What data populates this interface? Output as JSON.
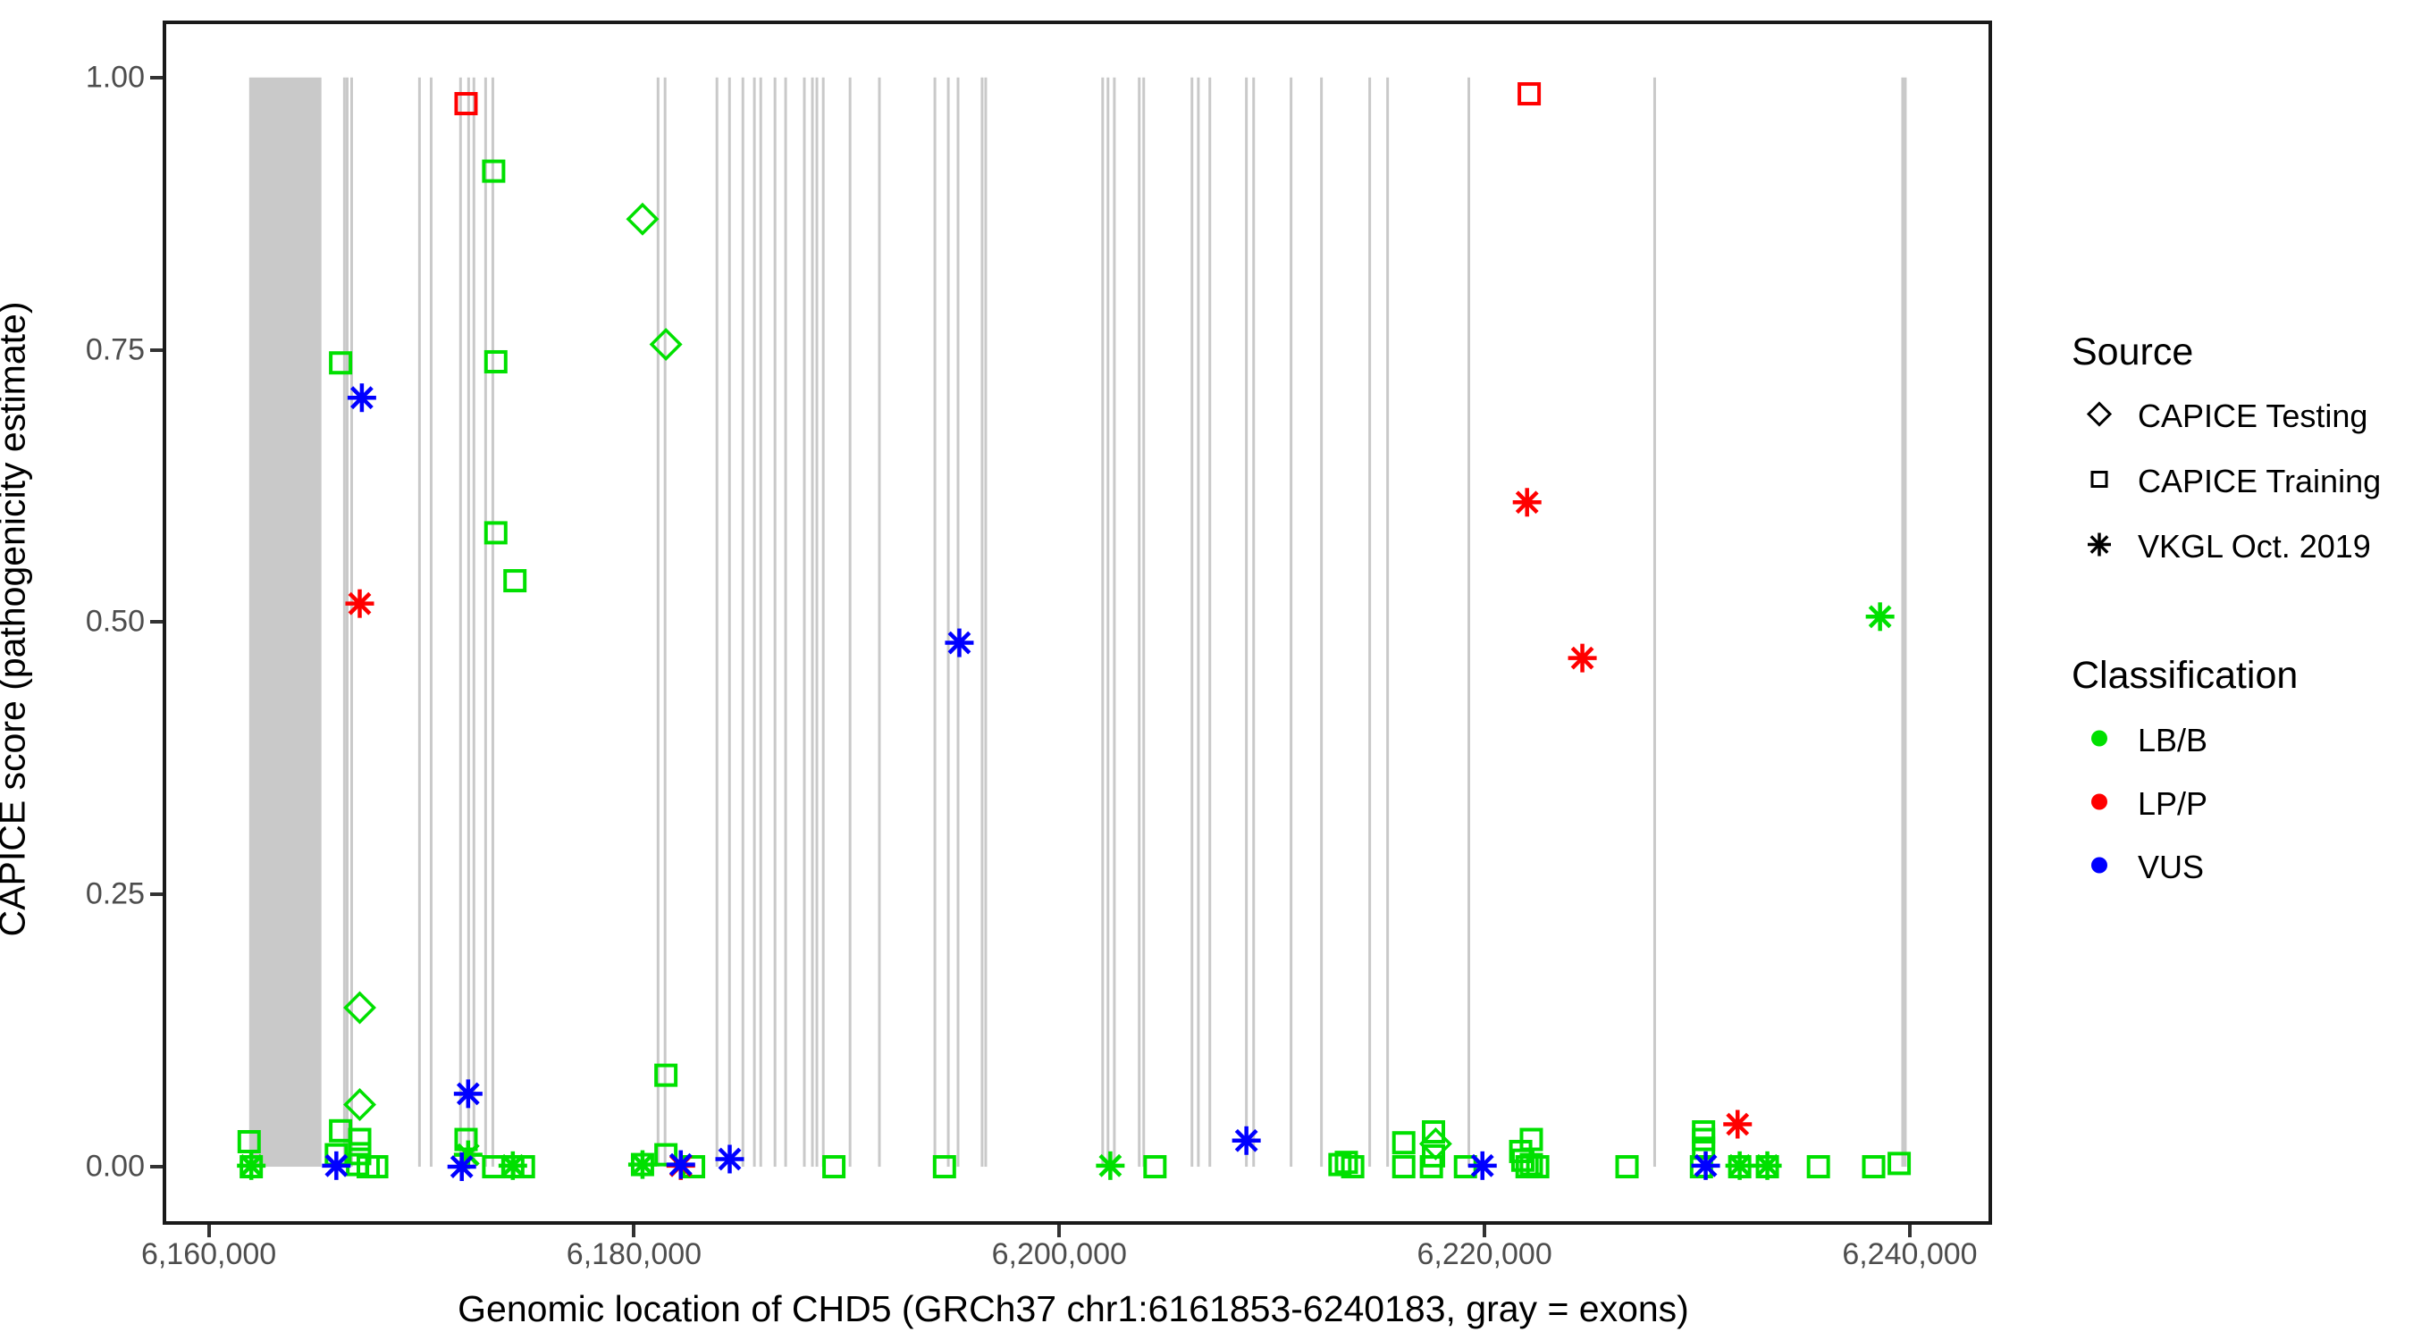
{
  "chart_data": {
    "type": "scatter",
    "title": "",
    "xlabel": "Genomic location of CHD5 (GRCh37 chr1:6161853-6240183, gray = exons)",
    "ylabel": "CAPICE score (pathogenicity estimate)",
    "xlim": [
      6158000,
      6243700
    ],
    "ylim": [
      -0.05,
      1.049
    ],
    "grid": false,
    "xticks": {
      "values": [
        6160000,
        6180000,
        6200000,
        6220000,
        6240000
      ],
      "labels": [
        "6,160,000",
        "6,180,000",
        "6,200,000",
        "6,220,000",
        "6,240,000"
      ]
    },
    "yticks": {
      "values": [
        0.0,
        0.25,
        0.5,
        0.75,
        1.0
      ],
      "labels": [
        "0.00",
        "0.25",
        "0.50",
        "0.75",
        "1.00"
      ]
    },
    "exons": {
      "color": "#c9c9c9",
      "note": "gray = exons, drawn as vertical segments spanning score 0 to 1",
      "band": {
        "start": 6161900,
        "end": 6165300
      },
      "wide_line": {
        "start": 6239600,
        "end": 6239850
      },
      "lines": [
        6166380,
        6166510,
        6166720,
        6169910,
        6170460,
        6171840,
        6172220,
        6172470,
        6173020,
        6173360,
        6181130,
        6181460,
        6183900,
        6184490,
        6185120,
        6185660,
        6185960,
        6186630,
        6187130,
        6188010,
        6188390,
        6188600,
        6188900,
        6190160,
        6191540,
        6194150,
        6194780,
        6195240,
        6196370,
        6196540,
        6202040,
        6202290,
        6202590,
        6203760,
        6203970,
        6206240,
        6206540,
        6207080,
        6208800,
        6209140,
        6210900,
        6212330,
        6214600,
        6215440,
        6219260,
        6228000
      ]
    },
    "series": [
      {
        "name": "CAPICE Training LB/B",
        "source": "CAPICE Training",
        "classification": "LB/B",
        "marker": "square",
        "color": "#00e000",
        "points": [
          [
            6173400,
            0.914
          ],
          [
            6166200,
            0.738
          ],
          [
            6173500,
            0.739
          ],
          [
            6173500,
            0.582
          ],
          [
            6174400,
            0.538
          ],
          [
            6181500,
            0.084
          ],
          [
            6161900,
            0.023
          ],
          [
            6162000,
            0.0
          ],
          [
            6166200,
            0.033
          ],
          [
            6166000,
            0.011
          ],
          [
            6167100,
            0.025
          ],
          [
            6167100,
            0.012
          ],
          [
            6167000,
            0.002
          ],
          [
            6167500,
            0.0
          ],
          [
            6167900,
            0.0
          ],
          [
            6172100,
            0.025
          ],
          [
            6173400,
            0.0
          ],
          [
            6174300,
            0.0
          ],
          [
            6174800,
            0.0
          ],
          [
            6180400,
            0.002
          ],
          [
            6181500,
            0.011
          ],
          [
            6182800,
            0.0
          ],
          [
            6189400,
            0.0
          ],
          [
            6194600,
            0.0
          ],
          [
            6204500,
            0.0
          ],
          [
            6213200,
            0.002
          ],
          [
            6213500,
            0.004
          ],
          [
            6213800,
            0.0
          ],
          [
            6216200,
            0.022
          ],
          [
            6216200,
            0.0
          ],
          [
            6217600,
            0.032
          ],
          [
            6217600,
            0.01
          ],
          [
            6217500,
            0.0
          ],
          [
            6219100,
            0.0
          ],
          [
            6221700,
            0.014
          ],
          [
            6221800,
            0.006
          ],
          [
            6222200,
            0.025
          ],
          [
            6222200,
            0.002
          ],
          [
            6222500,
            0.0
          ],
          [
            6222000,
            0.0
          ],
          [
            6226700,
            0.0
          ],
          [
            6230300,
            0.032
          ],
          [
            6230300,
            0.025
          ],
          [
            6230300,
            0.017
          ],
          [
            6230200,
            0.0
          ],
          [
            6232000,
            0.0
          ],
          [
            6233300,
            0.0
          ],
          [
            6235700,
            0.0
          ],
          [
            6238300,
            0.0
          ],
          [
            6239500,
            0.003
          ]
        ]
      },
      {
        "name": "CAPICE Training LP/P",
        "source": "CAPICE Training",
        "classification": "LP/P",
        "marker": "square",
        "color": "#ff0000",
        "points": [
          [
            6172100,
            0.976
          ],
          [
            6222100,
            0.985
          ]
        ]
      },
      {
        "name": "CAPICE Testing LB/B",
        "source": "CAPICE Testing",
        "classification": "LB/B",
        "marker": "diamond",
        "color": "#00e000",
        "points": [
          [
            6180400,
            0.87
          ],
          [
            6181500,
            0.755
          ],
          [
            6167100,
            0.146
          ],
          [
            6167100,
            0.057
          ],
          [
            6217700,
            0.021
          ]
        ]
      },
      {
        "name": "VKGL Oct. 2019 LB/B",
        "source": "VKGL Oct. 2019",
        "classification": "LB/B",
        "marker": "asterisk",
        "color": "#00e000",
        "points": [
          [
            6238600,
            0.505
          ],
          [
            6162000,
            0.001
          ],
          [
            6172200,
            0.011
          ],
          [
            6174300,
            0.001
          ],
          [
            6180400,
            0.002
          ],
          [
            6202400,
            0.001
          ],
          [
            6232000,
            0.001
          ],
          [
            6233300,
            0.001
          ]
        ]
      },
      {
        "name": "VKGL Oct. 2019 LP/P",
        "source": "VKGL Oct. 2019",
        "classification": "LP/P",
        "marker": "asterisk",
        "color": "#ff0000",
        "points": [
          [
            6222000,
            0.61
          ],
          [
            6224600,
            0.467
          ],
          [
            6167100,
            0.517
          ],
          [
            6231900,
            0.039
          ],
          [
            6182200,
            0.001
          ]
        ]
      },
      {
        "name": "VKGL Oct. 2019 VUS",
        "source": "VKGL Oct. 2019",
        "classification": "VUS",
        "marker": "asterisk",
        "color": "#0000ff",
        "points": [
          [
            6167200,
            0.706
          ],
          [
            6172200,
            0.067
          ],
          [
            6195300,
            0.481
          ],
          [
            6208800,
            0.024
          ],
          [
            6166000,
            0.001
          ],
          [
            6171900,
            0.0
          ],
          [
            6182200,
            0.002
          ],
          [
            6184500,
            0.007
          ],
          [
            6219900,
            0.001
          ],
          [
            6230400,
            0.001
          ]
        ]
      }
    ]
  },
  "legend": {
    "source": {
      "title": "Source",
      "items": [
        {
          "label": "CAPICE Testing",
          "marker": "diamond"
        },
        {
          "label": "CAPICE Training",
          "marker": "square"
        },
        {
          "label": "VKGL Oct. 2019",
          "marker": "asterisk"
        }
      ]
    },
    "classification": {
      "title": "Classification",
      "items": [
        {
          "label": "LB/B",
          "color": "#00e000"
        },
        {
          "label": "LP/P",
          "color": "#ff0000"
        },
        {
          "label": "VUS",
          "color": "#0000ff"
        }
      ]
    }
  }
}
